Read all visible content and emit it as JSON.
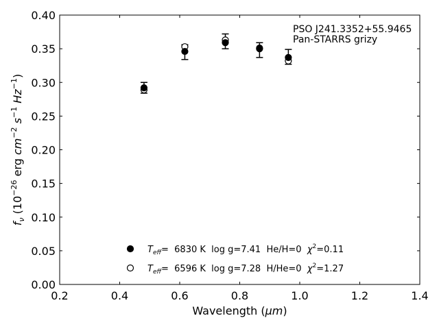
{
  "chart_data": {
    "type": "scatter",
    "title": "",
    "xlabel_prefix": "Wavelength (",
    "xlabel_mu": "μm",
    "xlabel_suffix": ")",
    "ylabel_f": "f",
    "ylabel_nu": "ν",
    "ylabel_open": " (10",
    "ylabel_exp26": "−26",
    "ylabel_erg": " erg ",
    "ylabel_cm": "cm",
    "ylabel_exp2": "−2",
    "ylabel_s": "s",
    "ylabel_exp1a": "−1",
    "ylabel_hz": "Hz",
    "ylabel_exp1b": "−1",
    "ylabel_close": ")",
    "xlim": [
      0.2,
      1.4
    ],
    "ylim": [
      0.0,
      0.4
    ],
    "x_ticks": [
      0.2,
      0.4,
      0.6,
      0.8,
      1.0,
      1.2,
      1.4
    ],
    "x_tick_labels": [
      "0.2",
      "0.4",
      "0.6",
      "0.8",
      "1.0",
      "1.2",
      "1.4"
    ],
    "y_ticks": [
      0.0,
      0.05,
      0.1,
      0.15,
      0.2,
      0.25,
      0.3,
      0.35,
      0.4
    ],
    "y_tick_labels": [
      "0.00",
      "0.05",
      "0.10",
      "0.15",
      "0.20",
      "0.25",
      "0.30",
      "0.35",
      "0.40"
    ],
    "grid": false,
    "annotation": {
      "line1": "PSO J241.3352+55.9465",
      "line2": "Pan-STARRS grizy"
    },
    "observed": {
      "x": [
        0.481,
        0.617,
        0.752,
        0.866,
        0.962
      ],
      "y": [
        0.292,
        0.345,
        0.361,
        0.348,
        0.338
      ],
      "yerr": [
        0.008,
        0.011,
        0.011,
        0.011,
        0.011
      ]
    },
    "series": [
      {
        "marker": "filled",
        "x": [
          0.481,
          0.617,
          0.752,
          0.866,
          0.962
        ],
        "y": [
          0.292,
          0.346,
          0.359,
          0.351,
          0.337
        ]
      },
      {
        "marker": "open",
        "x": [
          0.481,
          0.617,
          0.752,
          0.866,
          0.962
        ],
        "y": [
          0.289,
          0.353,
          0.363,
          0.35,
          0.332
        ]
      }
    ],
    "legend": [
      {
        "marker": "filled",
        "teff_T": "T",
        "teff_sub": "eff",
        "teff_val": "=  6830 K  log g=7.41  He/H=0  ",
        "chi": "χ",
        "chi_exp": "2",
        "chi_val": "=0.11"
      },
      {
        "marker": "open",
        "teff_T": "T",
        "teff_sub": "eff",
        "teff_val": "=  6596 K  log g=7.28  H/He=0  ",
        "chi": "χ",
        "chi_exp": "2",
        "chi_val": "=1.27"
      }
    ],
    "legend_position": "lower-center"
  }
}
